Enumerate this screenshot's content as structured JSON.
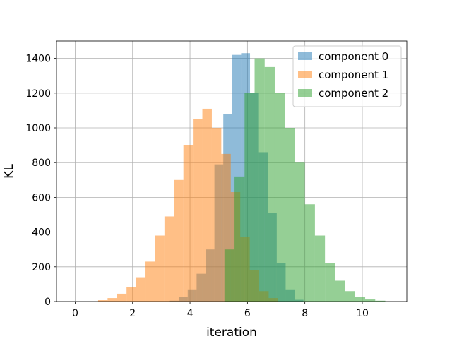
{
  "chart_data": {
    "type": "bar",
    "title": "",
    "xlabel": "iteration",
    "ylabel": "KL",
    "xlim": [
      -0.65,
      11.55
    ],
    "ylim": [
      0,
      1500
    ],
    "xticks": [
      0,
      2,
      4,
      6,
      8,
      10
    ],
    "yticks": [
      0,
      200,
      400,
      600,
      800,
      1000,
      1200,
      1400
    ],
    "grid": true,
    "legend_position": "top-right",
    "bar_alpha": 0.5,
    "series": [
      {
        "name": "component 0",
        "color": "#1f77b4",
        "bin_edges": [
          3.3,
          3.61,
          3.92,
          4.23,
          4.54,
          4.85,
          5.16,
          5.47,
          5.78,
          6.09,
          6.4,
          6.71,
          7.02,
          7.33,
          7.64,
          7.95
        ],
        "counts": [
          5,
          25,
          70,
          160,
          300,
          790,
          1080,
          1420,
          1430,
          1200,
          860,
          510,
          220,
          70,
          10
        ]
      },
      {
        "name": "component 1",
        "color": "#ff7f0e",
        "bin_edges": [
          0.8,
          1.13,
          1.46,
          1.79,
          2.12,
          2.45,
          2.78,
          3.11,
          3.44,
          3.77,
          4.1,
          4.43,
          4.76,
          5.09,
          5.42,
          5.75,
          6.08,
          6.41,
          6.74,
          7.07
        ],
        "counts": [
          8,
          20,
          45,
          85,
          140,
          230,
          380,
          490,
          700,
          900,
          1050,
          1110,
          1000,
          850,
          630,
          370,
          180,
          60,
          20
        ]
      },
      {
        "name": "component 2",
        "color": "#2ca02c",
        "bin_edges": [
          5.2,
          5.55,
          5.9,
          6.25,
          6.6,
          6.95,
          7.3,
          7.65,
          8.0,
          8.35,
          8.7,
          9.05,
          9.4,
          9.75,
          10.1,
          10.45,
          10.8
        ],
        "counts": [
          300,
          720,
          1200,
          1400,
          1350,
          1200,
          1000,
          800,
          560,
          380,
          220,
          120,
          60,
          25,
          12,
          5
        ]
      }
    ]
  }
}
